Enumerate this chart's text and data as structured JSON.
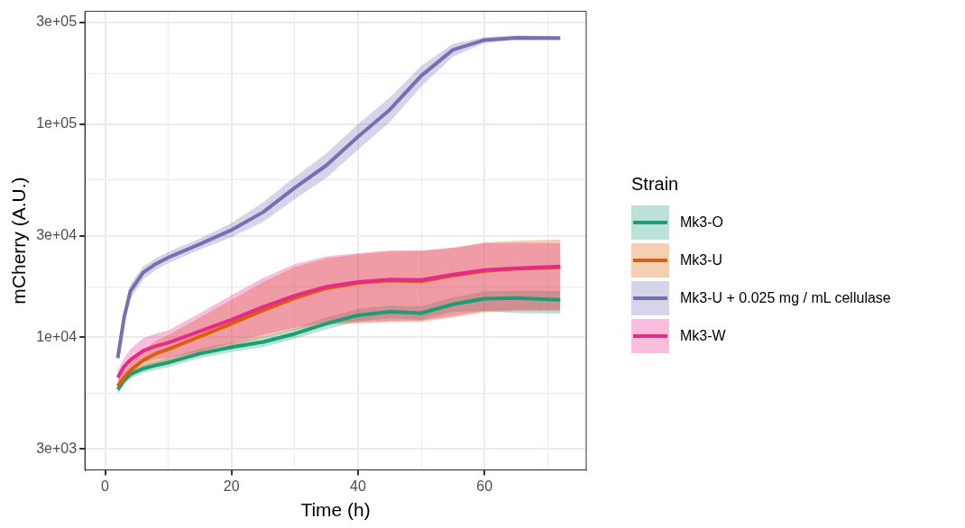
{
  "chart_data": {
    "type": "line",
    "xlabel": "Time (h)",
    "ylabel": "mCherry (A.U.)",
    "legend_title": "Strain",
    "x": [
      2,
      3,
      4,
      6,
      8,
      10,
      15,
      20,
      25,
      30,
      35,
      40,
      45,
      50,
      55,
      60,
      65,
      72
    ],
    "xlim": [
      -3.2,
      76.1
    ],
    "xticks": [
      0,
      {
        "value": 10,
        "label": null
      },
      20,
      {
        "value": 30,
        "label": null
      },
      40,
      {
        "value": 50,
        "label": null
      },
      60,
      {
        "value": 70,
        "label": null
      }
    ],
    "ylim": [
      2390,
      338000
    ],
    "log": "y",
    "yticks": [
      {
        "value": 3000,
        "label": "3e+03"
      },
      {
        "value": 5477,
        "label": null
      },
      {
        "value": 10000,
        "label": "1e+04"
      },
      {
        "value": 17321,
        "label": null
      },
      {
        "value": 30000,
        "label": "3e+04"
      },
      {
        "value": 54772,
        "label": null
      },
      {
        "value": 100000,
        "label": "1e+05"
      },
      {
        "value": 173205,
        "label": null
      },
      {
        "value": 300000,
        "label": "3e+05"
      }
    ],
    "grid": true,
    "legend": "right",
    "marker": "none",
    "line_style": "solid",
    "series": [
      {
        "name": "Mk3-O",
        "color": "#1b9e77",
        "values": [
          5700,
          6300,
          6730,
          7130,
          7400,
          7620,
          8400,
          9000,
          9520,
          10400,
          11600,
          12700,
          13200,
          13000,
          14300,
          15200,
          15300,
          15000
        ],
        "lower": [
          5400,
          6000,
          6400,
          6800,
          7050,
          7250,
          8000,
          8550,
          9000,
          9850,
          10900,
          11900,
          12300,
          12100,
          13200,
          13300,
          13000,
          12900
        ],
        "upper": [
          6000,
          6600,
          7050,
          7450,
          7750,
          8000,
          8850,
          9500,
          10100,
          11000,
          12400,
          13600,
          14100,
          14000,
          15400,
          16400,
          16600,
          16500
        ]
      },
      {
        "name": "Mk3-U",
        "color": "#d95f02",
        "values": [
          5900,
          6500,
          7000,
          7800,
          8400,
          8800,
          10100,
          11600,
          13400,
          15300,
          17000,
          18000,
          18500,
          18300,
          19500,
          20500,
          21000,
          21300
        ],
        "lower": [
          5500,
          6100,
          6500,
          7100,
          7400,
          7600,
          8300,
          9100,
          10000,
          10800,
          11500,
          11600,
          11800,
          11800,
          12400,
          13100,
          13300,
          13300
        ],
        "upper": [
          6300,
          7000,
          7600,
          8700,
          9600,
          10300,
          12400,
          15000,
          18200,
          21400,
          23500,
          24500,
          25300,
          25400,
          26300,
          27900,
          28400,
          28800
        ]
      },
      {
        "name": "Mk3-U + 0.025 mg / mL cellulase",
        "color": "#7570b3",
        "values": [
          8000,
          12400,
          16500,
          20100,
          22100,
          23700,
          27400,
          31900,
          38700,
          50300,
          64100,
          87300,
          116700,
          168600,
          223000,
          248000,
          254000,
          253000
        ],
        "lower": [
          7600,
          11500,
          15200,
          18700,
          20700,
          22300,
          25800,
          29500,
          34800,
          44500,
          56000,
          76000,
          102000,
          150000,
          207000,
          240000,
          248000,
          248000
        ],
        "upper": [
          8400,
          13300,
          17800,
          21500,
          23500,
          25200,
          29100,
          34400,
          43000,
          56500,
          73000,
          100000,
          133000,
          188000,
          238000,
          256000,
          261000,
          259000
        ]
      },
      {
        "name": "Mk3-W",
        "color": "#e7298a",
        "values": [
          6480,
          7300,
          7850,
          8650,
          9100,
          9440,
          10700,
          12100,
          13900,
          15700,
          17300,
          18200,
          18700,
          18600,
          19700,
          20700,
          21100,
          21500
        ],
        "lower": [
          6000,
          6700,
          7100,
          7600,
          7900,
          8000,
          8600,
          9400,
          10300,
          11100,
          11800,
          11800,
          11900,
          12000,
          12600,
          13300,
          13500,
          13500
        ],
        "upper": [
          7000,
          8000,
          8800,
          9900,
          10400,
          10800,
          13000,
          15800,
          19000,
          22100,
          24000,
          24800,
          25600,
          25600,
          26300,
          27600,
          27800,
          27600
        ]
      }
    ]
  }
}
